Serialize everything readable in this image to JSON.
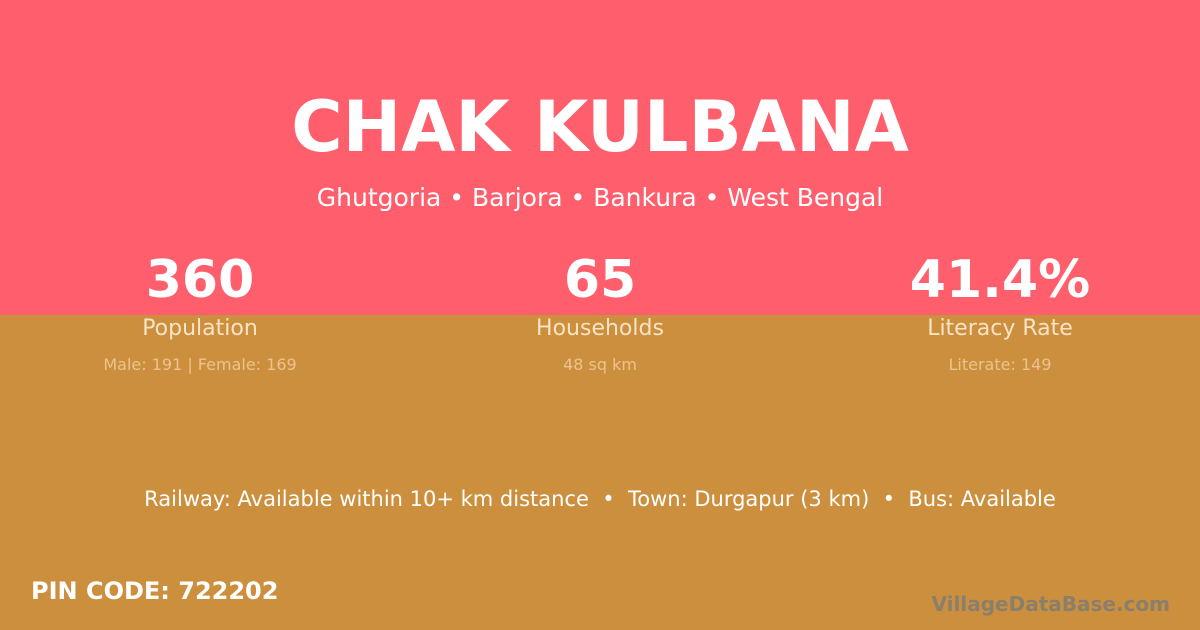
{
  "colors": {
    "top": "#ff5f6d",
    "bottom": "#cc8f3e"
  },
  "title": "CHAK KULBANA",
  "subtitle": "Ghutgoria • Barjora • Bankura • West Bengal",
  "stats": [
    {
      "value": "360",
      "label": "Population",
      "detail": "Male: 191 | Female: 169"
    },
    {
      "value": "65",
      "label": "Households",
      "detail": "48 sq km"
    },
    {
      "value": "41.4%",
      "label": "Literacy Rate",
      "detail": "Literate: 149"
    }
  ],
  "connectivity": "Railway: Available within 10+ km distance  •  Town: Durgapur (3 km)  •  Bus: Available",
  "pin": "PIN CODE: 722202",
  "logo": "VillageDataBase.com"
}
